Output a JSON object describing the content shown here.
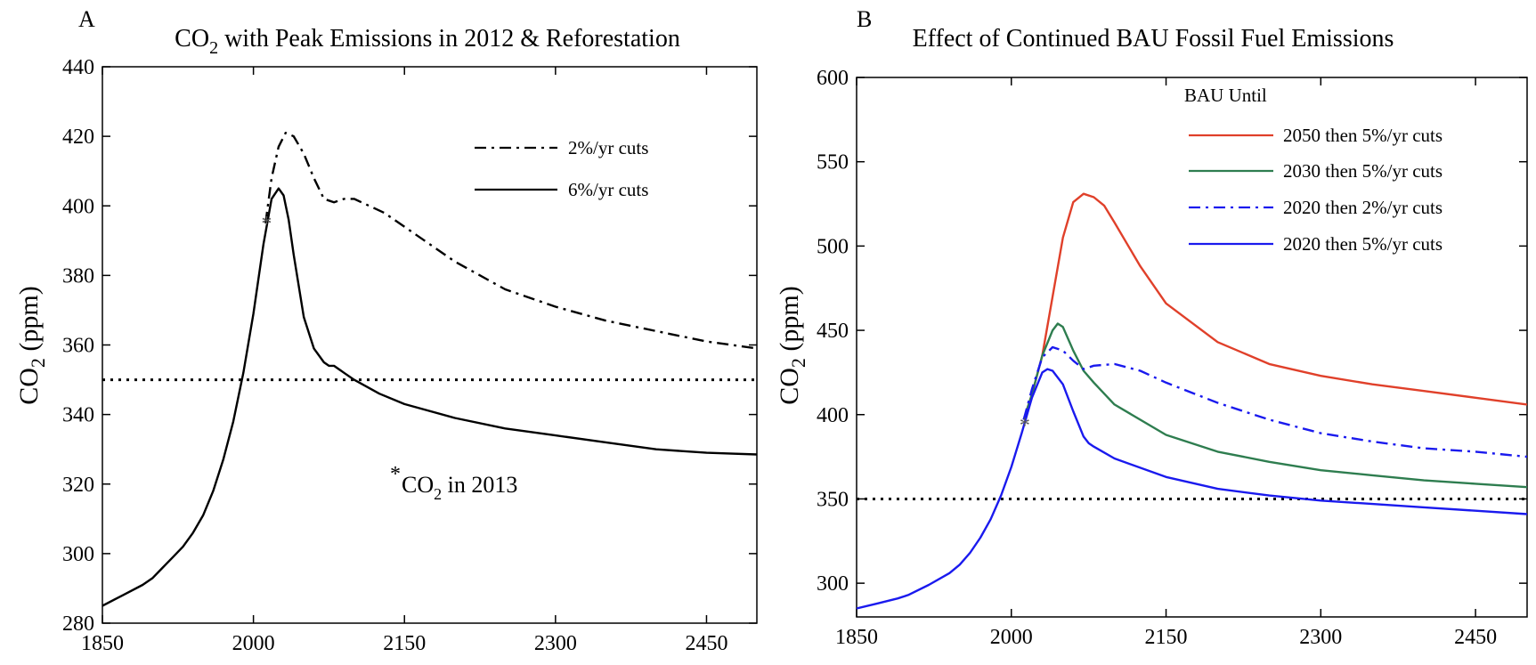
{
  "chart_data": [
    {
      "panel": "A",
      "type": "line",
      "title": "CO2 with Peak Emissions in 2012 & Reforestation",
      "ylabel": "CO2 (ppm)",
      "xlabel": "",
      "xlim": [
        1850,
        2500
      ],
      "ylim": [
        280,
        440
      ],
      "xticks": [
        1850,
        2000,
        2150,
        2300,
        2450
      ],
      "yticks": [
        280,
        300,
        320,
        340,
        360,
        380,
        400,
        420,
        440
      ],
      "legend_position": "top-right",
      "legend_title": "",
      "reference_line": {
        "y": 350,
        "style": "dotted",
        "color": "#000000"
      },
      "annotation": {
        "marker": "*",
        "text": "CO2 in 2013",
        "x": 2013,
        "y": 396
      },
      "series": [
        {
          "name": "2%/yr cuts",
          "style": "dashdot",
          "color": "#000000",
          "x": [
            2012,
            2018,
            2025,
            2032,
            2040,
            2050,
            2060,
            2070,
            2080,
            2090,
            2100,
            2130,
            2160,
            2200,
            2250,
            2300,
            2350,
            2400,
            2450,
            2500
          ],
          "y": [
            395,
            408,
            417,
            421,
            420,
            415,
            408,
            402,
            401,
            402,
            402,
            398,
            392,
            384,
            376,
            371,
            367,
            364,
            361,
            359
          ]
        },
        {
          "name": "6%/yr cuts",
          "style": "solid",
          "color": "#000000",
          "x": [
            1850,
            1870,
            1890,
            1900,
            1910,
            1920,
            1930,
            1940,
            1950,
            1960,
            1970,
            1980,
            1990,
            2000,
            2010,
            2018,
            2025,
            2030,
            2035,
            2040,
            2050,
            2060,
            2070,
            2075,
            2080,
            2090,
            2100,
            2125,
            2150,
            2200,
            2250,
            2300,
            2350,
            2400,
            2450,
            2500
          ],
          "y": [
            285,
            288,
            291,
            293,
            296,
            299,
            302,
            306,
            311,
            318,
            327,
            338,
            352,
            369,
            389,
            402,
            405,
            403,
            396,
            386,
            368,
            359,
            355,
            354,
            354,
            352,
            350,
            346,
            343,
            339,
            336,
            334,
            332,
            330,
            329,
            328.5
          ]
        }
      ]
    },
    {
      "panel": "B",
      "type": "line",
      "title": "Effect of Continued BAU Fossil Fuel Emissions",
      "ylabel": "CO2 (ppm)",
      "xlabel": "",
      "xlim": [
        1850,
        2500
      ],
      "ylim": [
        280,
        600
      ],
      "xticks": [
        1850,
        2000,
        2150,
        2300,
        2450
      ],
      "yticks": [
        300,
        350,
        400,
        450,
        500,
        550,
        600
      ],
      "legend_position": "top-right",
      "legend_title": "BAU Until",
      "reference_line": {
        "y": 350,
        "style": "dotted",
        "color": "#000000"
      },
      "annotation": {
        "marker": "*",
        "text": "",
        "x": 2013,
        "y": 396
      },
      "series": [
        {
          "name": "2050 then 5%/yr cuts",
          "style": "solid",
          "color": "#e0402a",
          "x": [
            2012,
            2020,
            2030,
            2040,
            2050,
            2060,
            2070,
            2080,
            2090,
            2100,
            2125,
            2150,
            2200,
            2250,
            2300,
            2350,
            2400,
            2450,
            2500
          ],
          "y": [
            397,
            412,
            435,
            470,
            505,
            526,
            531,
            529,
            524,
            514,
            488,
            466,
            443,
            430,
            423,
            418,
            414,
            410,
            406
          ]
        },
        {
          "name": "2030 then 5%/yr cuts",
          "style": "solid",
          "color": "#2e7d4f",
          "x": [
            2012,
            2020,
            2030,
            2040,
            2045,
            2050,
            2060,
            2070,
            2080,
            2100,
            2150,
            2200,
            2250,
            2300,
            2350,
            2400,
            2450,
            2500
          ],
          "y": [
            397,
            412,
            435,
            450,
            454,
            452,
            438,
            426,
            419,
            406,
            388,
            378,
            372,
            367,
            364,
            361,
            359,
            357
          ]
        },
        {
          "name": "2020 then 2%/yr cuts",
          "style": "dashdot",
          "color": "#1a1aee",
          "x": [
            2012,
            2020,
            2030,
            2040,
            2050,
            2060,
            2070,
            2080,
            2100,
            2125,
            2150,
            2200,
            2250,
            2300,
            2350,
            2400,
            2450,
            2500
          ],
          "y": [
            397,
            415,
            434,
            440,
            438,
            432,
            427,
            429,
            430,
            426,
            419,
            407,
            397,
            389,
            384,
            380,
            378,
            375
          ]
        },
        {
          "name": "2020 then 5%/yr cuts",
          "style": "solid",
          "color": "#1a1aee",
          "x": [
            1850,
            1870,
            1890,
            1900,
            1920,
            1940,
            1950,
            1960,
            1970,
            1980,
            1990,
            2000,
            2010,
            2020,
            2030,
            2035,
            2040,
            2050,
            2060,
            2070,
            2075,
            2080,
            2100,
            2150,
            2200,
            2250,
            2300,
            2350,
            2400,
            2450,
            2500
          ],
          "y": [
            285,
            288,
            291,
            293,
            299,
            306,
            311,
            318,
            327,
            338,
            352,
            369,
            389,
            410,
            425,
            427,
            426,
            418,
            402,
            387,
            383,
            381,
            374,
            363,
            356,
            352,
            349,
            347,
            345,
            343,
            341
          ]
        }
      ]
    }
  ]
}
